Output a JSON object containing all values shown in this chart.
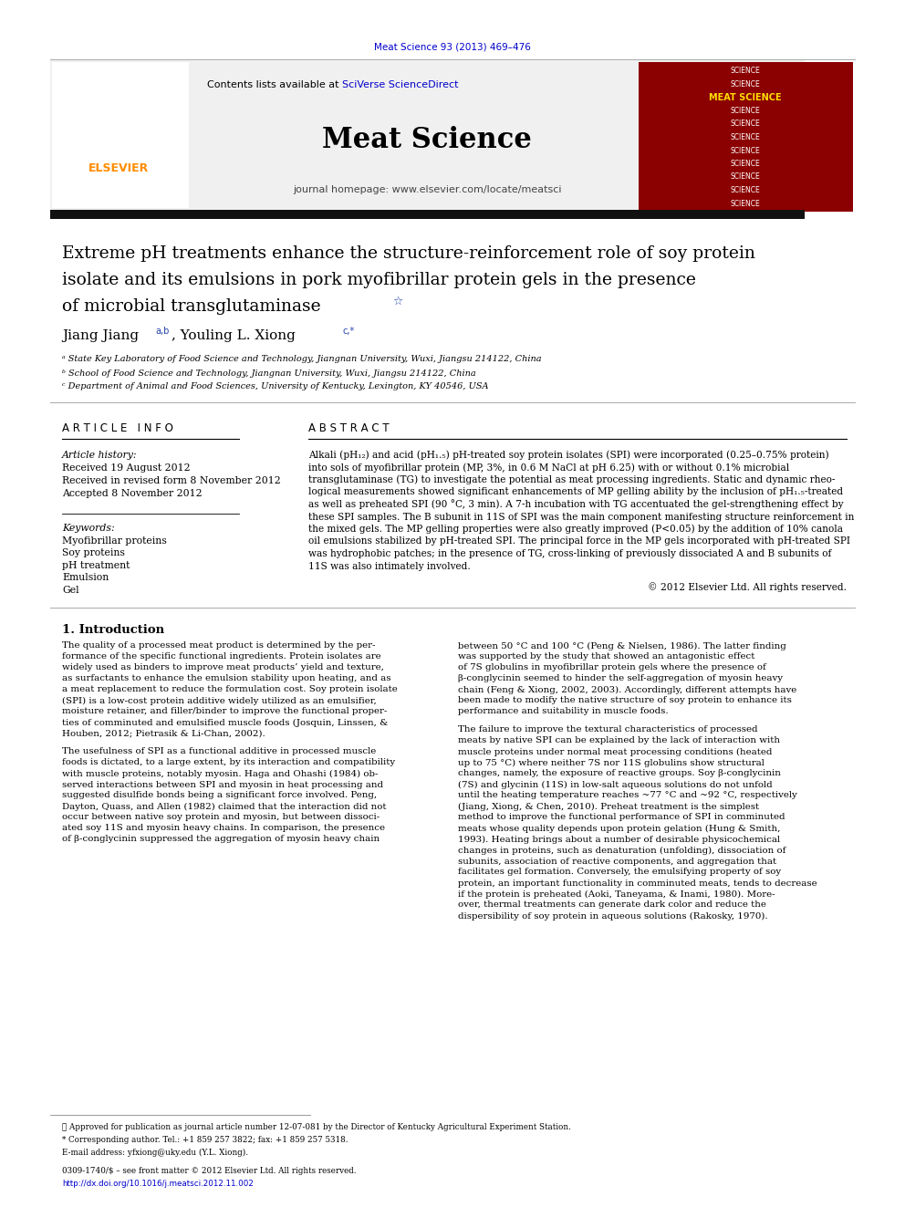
{
  "page_width": 9.92,
  "page_height": 13.23,
  "bg_color": "#ffffff",
  "top_journal_ref": "Meat Science 93 (2013) 469–476",
  "top_journal_ref_color": "#0000cc",
  "header_bg": "#f0f0f0",
  "header_contents_text": "Contents lists available at ",
  "header_sciverse_text": "SciVerse ScienceDirect",
  "header_sciverse_color": "#0000cc",
  "header_journal_name": "Meat Science",
  "header_journal_url": "journal homepage: www.elsevier.com/locate/meatsci",
  "title_line1": "Extreme pH treatments enhance the structure-reinforcement role of soy protein",
  "title_line2": "isolate and its emulsions in pork myofibrillar protein gels in the presence",
  "title_line3": "of microbial transglutaminase",
  "title_star": "☆",
  "author1_name": "Jiang Jiang",
  "author1_sup": "a,b",
  "author2_name": ", Youling L. Xiong",
  "author2_sup": "c,*",
  "affil_a": "ᵃ State Key Laboratory of Food Science and Technology, Jiangnan University, Wuxi, Jiangsu 214122, China",
  "affil_b": "ᵇ School of Food Science and Technology, Jiangnan University, Wuxi, Jiangsu 214122, China",
  "affil_c": "ᶜ Department of Animal and Food Sciences, University of Kentucky, Lexington, KY 40546, USA",
  "article_info_header": "A R T I C L E   I N F O",
  "article_history_label": "Article history:",
  "received_date": "Received 19 August 2012",
  "revised_date": "Received in revised form 8 November 2012",
  "accepted_date": "Accepted 8 November 2012",
  "keywords_label": "Keywords:",
  "keywords": [
    "Myofibrillar proteins",
    "Soy proteins",
    "pH treatment",
    "Emulsion",
    "Gel"
  ],
  "abstract_header": "A B S T R A C T",
  "abstract_lines": [
    "Alkali (pH₁₂) and acid (pH₁.₅) pH-treated soy protein isolates (SPI) were incorporated (0.25–0.75% protein)",
    "into sols of myofibrillar protein (MP, 3%, in 0.6 M NaCl at pH 6.25) with or without 0.1% microbial",
    "transglutaminase (TG) to investigate the potential as meat processing ingredients. Static and dynamic rheo-",
    "logical measurements showed significant enhancements of MP gelling ability by the inclusion of pH₁.₅-treated",
    "as well as preheated SPI (90 °C, 3 min). A 7-h incubation with TG accentuated the gel-strengthening effect by",
    "these SPI samples. The B subunit in 11S of SPI was the main component manifesting structure reinforcement in",
    "the mixed gels. The MP gelling properties were also greatly improved (P<0.05) by the addition of 10% canola",
    "oil emulsions stabilized by pH-treated SPI. The principal force in the MP gels incorporated with pH-treated SPI",
    "was hydrophobic patches; in the presence of TG, cross-linking of previously dissociated A and B subunits of",
    "11S was also intimately involved."
  ],
  "copyright_text": "© 2012 Elsevier Ltd. All rights reserved.",
  "intro_header": "1. Introduction",
  "intro_col1_p1": [
    "The quality of a processed meat product is determined by the per-",
    "formance of the specific functional ingredients. Protein isolates are",
    "widely used as binders to improve meat products’ yield and texture,",
    "as surfactants to enhance the emulsion stability upon heating, and as",
    "a meat replacement to reduce the formulation cost. Soy protein isolate",
    "(SPI) is a low-cost protein additive widely utilized as an emulsifier,",
    "moisture retainer, and filler/binder to improve the functional proper-",
    "ties of comminuted and emulsified muscle foods (Josquin, Linssen, &",
    "Houben, 2012; Pietrasik & Li-Chan, 2002)."
  ],
  "intro_col1_p2": [
    "The usefulness of SPI as a functional additive in processed muscle",
    "foods is dictated, to a large extent, by its interaction and compatibility",
    "with muscle proteins, notably myosin. Haga and Ohashi (1984) ob-",
    "served interactions between SPI and myosin in heat processing and",
    "suggested disulfide bonds being a significant force involved. Peng,",
    "Dayton, Quass, and Allen (1982) claimed that the interaction did not",
    "occur between native soy protein and myosin, but between dissoci-",
    "ated soy 11S and myosin heavy chains. In comparison, the presence",
    "of β-conglycinin suppressed the aggregation of myosin heavy chain"
  ],
  "intro_col2_p1": [
    "between 50 °C and 100 °C (Peng & Nielsen, 1986). The latter finding",
    "was supported by the study that showed an antagonistic effect",
    "of 7S globulins in myofibrillar protein gels where the presence of",
    "β-conglycinin seemed to hinder the self-aggregation of myosin heavy",
    "chain (Feng & Xiong, 2002, 2003). Accordingly, different attempts have",
    "been made to modify the native structure of soy protein to enhance its",
    "performance and suitability in muscle foods."
  ],
  "intro_col2_p2": [
    "The failure to improve the textural characteristics of processed",
    "meats by native SPI can be explained by the lack of interaction with",
    "muscle proteins under normal meat processing conditions (heated",
    "up to 75 °C) where neither 7S nor 11S globulins show structural",
    "changes, namely, the exposure of reactive groups. Soy β-conglycinin",
    "(7S) and glycinin (11S) in low-salt aqueous solutions do not unfold",
    "until the heating temperature reaches ~77 °C and ~92 °C, respectively",
    "(Jiang, Xiong, & Chen, 2010). Preheat treatment is the simplest",
    "method to improve the functional performance of SPI in comminuted",
    "meats whose quality depends upon protein gelation (Hung & Smith,",
    "1993). Heating brings about a number of desirable physicochemical",
    "changes in proteins, such as denaturation (unfolding), dissociation of",
    "subunits, association of reactive components, and aggregation that",
    "facilitates gel formation. Conversely, the emulsifying property of soy",
    "protein, an important functionality in comminuted meats, tends to decrease",
    "if the protein is preheated (Aoki, Taneyama, & Inami, 1980). More-",
    "over, thermal treatments can generate dark color and reduce the",
    "dispersibility of soy protein in aqueous solutions (Rakosky, 1970)."
  ],
  "footnote1": "☆ Approved for publication as journal article number 12-07-081 by the Director of Kentucky Agricultural Experiment Station.",
  "footnote2": "* Corresponding author. Tel.: +1 859 257 3822; fax: +1 859 257 5318.",
  "footnote3": "E-mail address: yfxiong@uky.edu (Y.L. Xiong).",
  "issn_line": "0309-1740/$ – see front matter © 2012 Elsevier Ltd. All rights reserved.",
  "doi_line": "http://dx.doi.org/10.1016/j.meatsci.2012.11.002",
  "doi_color": "#0000cc",
  "red_box_color": "#8b0000",
  "thick_bar_color": "#111111"
}
